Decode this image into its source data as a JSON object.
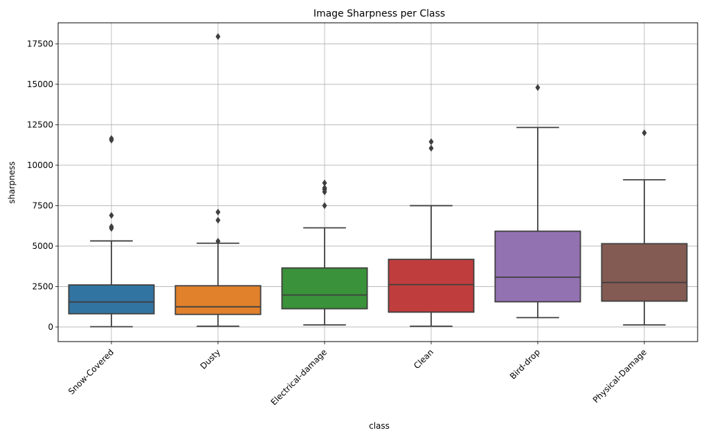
{
  "chart_data": {
    "type": "box",
    "title": "Image Sharpness per Class",
    "xlabel": "class",
    "ylabel": "sharpness",
    "ylim": [
      -900,
      18800
    ],
    "yticks": [
      0,
      2500,
      5000,
      7500,
      10000,
      12500,
      15000,
      17500
    ],
    "grid": true,
    "categories": [
      "Snow-Covered",
      "Dusty",
      "Electrical-damage",
      "Clean",
      "Bird-drop",
      "Physical-Damage"
    ],
    "colors": [
      "#3274a1",
      "#e1812c",
      "#3a923a",
      "#c03d3e",
      "#9372b2",
      "#845b53"
    ],
    "boxes": [
      {
        "whisker_low": 20,
        "q1": 820,
        "median": 1550,
        "q3": 2600,
        "whisker_high": 5320,
        "outliers": [
          6100,
          6200,
          6900,
          11550,
          11650
        ]
      },
      {
        "whisker_low": 50,
        "q1": 780,
        "median": 1250,
        "q3": 2550,
        "whisker_high": 5180,
        "outliers": [
          5300,
          6600,
          7100,
          17950
        ]
      },
      {
        "whisker_low": 130,
        "q1": 1130,
        "median": 1980,
        "q3": 3650,
        "whisker_high": 6130,
        "outliers": [
          7500,
          8350,
          8500,
          8600,
          8900
        ]
      },
      {
        "whisker_low": 50,
        "q1": 920,
        "median": 2620,
        "q3": 4180,
        "whisker_high": 7500,
        "outliers": [
          11050,
          11450
        ]
      },
      {
        "whisker_low": 580,
        "q1": 1560,
        "median": 3080,
        "q3": 5920,
        "whisker_high": 12330,
        "outliers": [
          14800
        ]
      },
      {
        "whisker_low": 130,
        "q1": 1600,
        "median": 2750,
        "q3": 5150,
        "whisker_high": 9100,
        "outliers": [
          12000
        ]
      }
    ]
  }
}
